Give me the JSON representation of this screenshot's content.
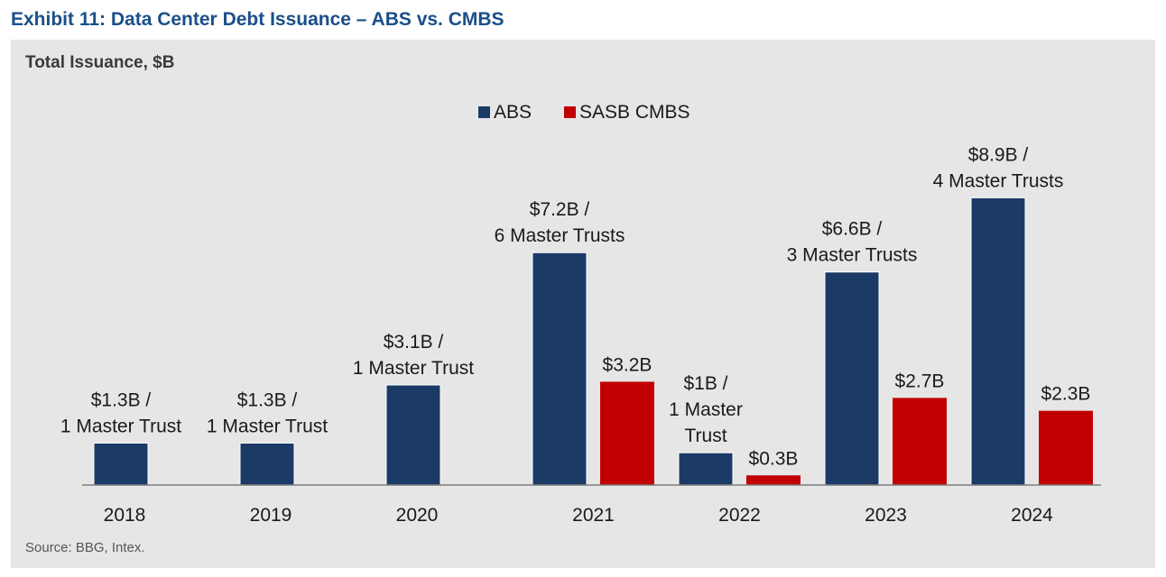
{
  "exhibit": {
    "title": "Exhibit 11: Data Center Debt Issuance – ABS vs. CMBS",
    "subtitle": "Total Issuance, $B",
    "source": "Source: BBG, Intex."
  },
  "colors": {
    "abs": "#1b3a66",
    "cmbs": "#c00000",
    "panel_bg": "#e6e6e6",
    "title": "#1b4f8a"
  },
  "chart_data": {
    "type": "bar",
    "title": "Total Issuance, $B",
    "xlabel": "",
    "ylabel": "",
    "ylim": [
      0,
      10
    ],
    "grid": false,
    "legend": "top-center",
    "categories": [
      "2018",
      "2019",
      "2020",
      "2021",
      "2022",
      "2023",
      "2024"
    ],
    "series": [
      {
        "name": "ABS",
        "values": [
          1.3,
          1.3,
          3.1,
          7.2,
          1.0,
          6.6,
          8.9
        ],
        "labels": [
          [
            "$1.3B /",
            "1 Master Trust"
          ],
          [
            "$1.3B /",
            "1 Master Trust"
          ],
          [
            "$3.1B /",
            "1 Master Trust"
          ],
          [
            "$7.2B /",
            "6 Master Trusts"
          ],
          [
            "$1B /",
            "1 Master",
            "Trust"
          ],
          [
            "$6.6B /",
            "3 Master Trusts"
          ],
          [
            "$8.9B /",
            "4 Master Trusts"
          ]
        ]
      },
      {
        "name": "SASB CMBS",
        "values": [
          null,
          null,
          null,
          3.2,
          0.3,
          2.7,
          2.3
        ],
        "labels": [
          null,
          null,
          null,
          [
            "$3.2B"
          ],
          [
            "$0.3B"
          ],
          [
            "$2.7B"
          ],
          [
            "$2.3B"
          ]
        ]
      }
    ]
  }
}
